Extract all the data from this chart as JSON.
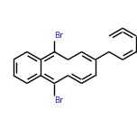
{
  "bg_color": "#ffffff",
  "bond_color": "#000000",
  "br_color": "#2222cc",
  "line_width": 1.0,
  "font_size": 6.5,
  "figsize": [
    1.52,
    1.52
  ],
  "dpi": 100
}
